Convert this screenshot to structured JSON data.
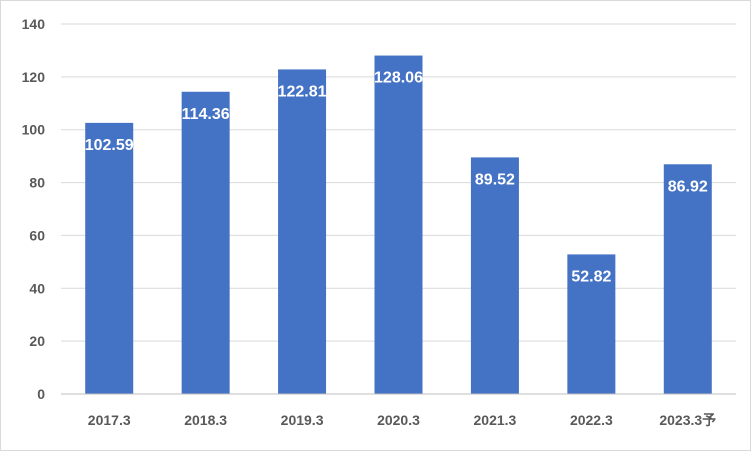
{
  "chart_data": {
    "type": "bar",
    "title": "",
    "xlabel": "",
    "ylabel": "",
    "categories": [
      "2017.3",
      "2018.3",
      "2019.3",
      "2020.3",
      "2021.3",
      "2022.3",
      "2023.3予"
    ],
    "values": [
      102.59,
      114.36,
      122.81,
      128.06,
      89.52,
      52.82,
      86.92
    ],
    "value_labels": [
      "102.59",
      "114.36",
      "122.81",
      "128.06",
      "89.52",
      "52.82",
      "86.92"
    ],
    "ylim": [
      0,
      140
    ],
    "yticks": [
      0,
      20,
      40,
      60,
      80,
      100,
      120,
      140
    ],
    "ytick_labels": [
      "0",
      "20",
      "40",
      "60",
      "80",
      "100",
      "120",
      "140"
    ],
    "grid": true,
    "legend": "none",
    "colors": {
      "bar": "#4472c4",
      "grid": "#d9d9d9",
      "axis": "#bfbfbf",
      "tick_text": "#595959",
      "label_text": "#ffffff"
    }
  }
}
